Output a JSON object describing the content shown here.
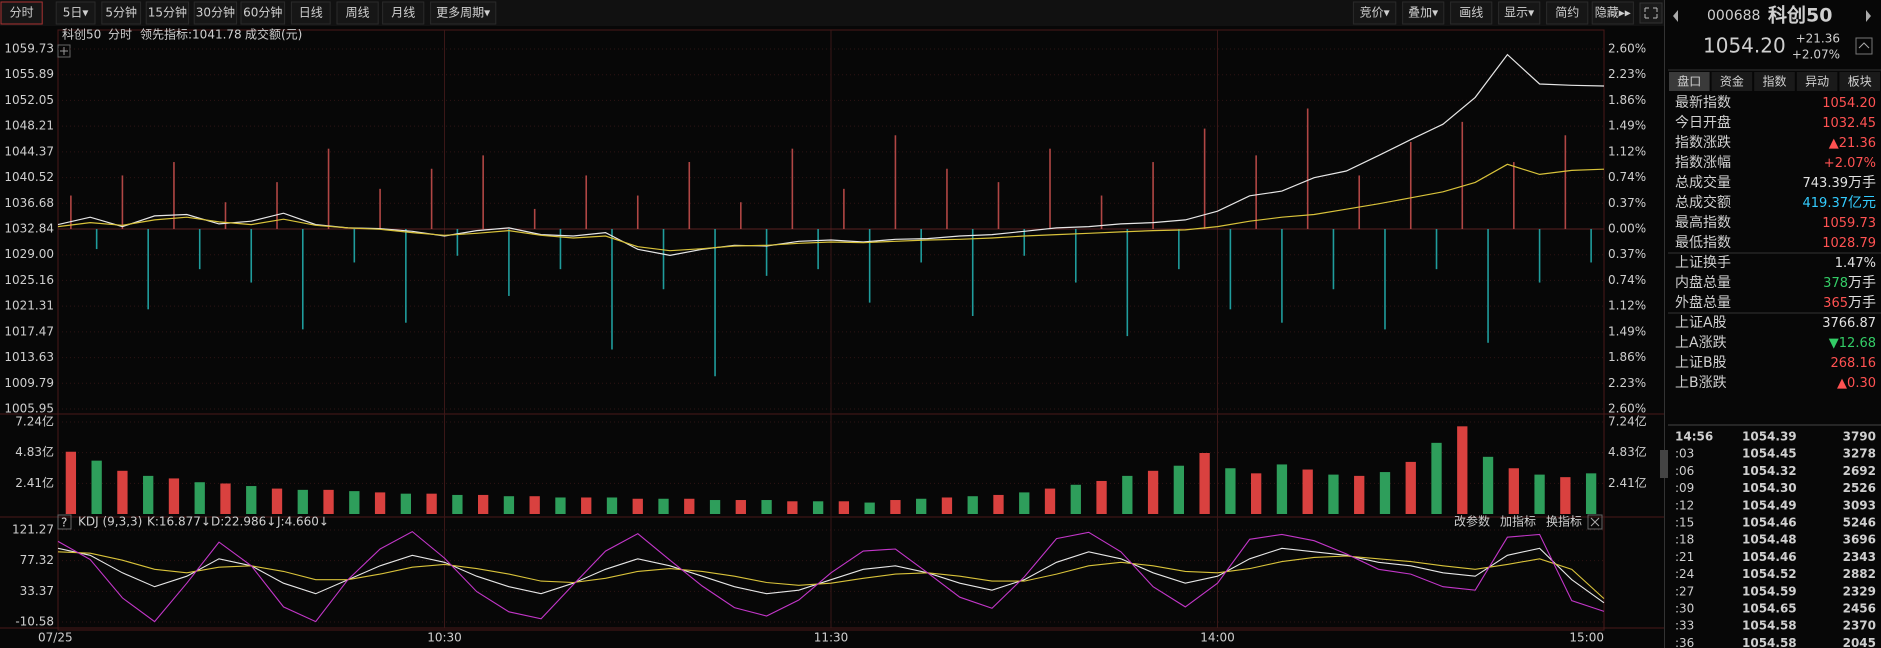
{
  "toolbar": {
    "periods": [
      "分时",
      "5日▾",
      "5分钟",
      "15分钟",
      "30分钟",
      "60分钟",
      "日线",
      "周线",
      "月线",
      "更多周期▾"
    ],
    "tools": [
      "竞价▾",
      "叠加▾",
      "画线",
      "显示▾",
      "简约",
      "隐藏▸▸"
    ]
  },
  "quote": {
    "code": "000688",
    "name": "科创50",
    "price": "1054.20",
    "change": "+21.36",
    "change_pct": "+2.07%"
  },
  "tabs": [
    "盘口",
    "资金",
    "指数",
    "异动",
    "板块"
  ],
  "stats": [
    {
      "label": "最新指数",
      "value": "1054.20",
      "color": "#ff5252"
    },
    {
      "label": "今日开盘",
      "value": "1032.45",
      "color": "#ff5252"
    },
    {
      "label": "指数涨跌",
      "value": "▲21.36",
      "color": "#ff5252"
    },
    {
      "label": "指数涨幅",
      "value": "+2.07%",
      "color": "#ff5252"
    },
    {
      "label": "总成交量",
      "value": "743.39",
      "unit": "万手",
      "color": "#e0e0e0"
    },
    {
      "label": "总成交额",
      "value": "419.37",
      "unit": "亿元",
      "color": "#33ccff"
    },
    {
      "label": "最高指数",
      "value": "1059.73",
      "color": "#ff5252"
    },
    {
      "label": "最低指数",
      "value": "1028.79",
      "color": "#ff5252"
    },
    {
      "label": "上证换手",
      "value": "1.47%",
      "color": "#e0e0e0"
    },
    {
      "label": "内盘总量",
      "value": "378",
      "unit": "万手",
      "color": "#33cc66"
    },
    {
      "label": "外盘总量",
      "value": "365",
      "unit": "万手",
      "color": "#ff5252"
    },
    {
      "label": "上证A股",
      "value": "3766.87",
      "color": "#e0e0e0"
    },
    {
      "label": "上A涨跌",
      "value": "▼12.68",
      "color": "#33cc66"
    },
    {
      "label": "上证B股",
      "value": "268.16",
      "color": "#ff5252"
    },
    {
      "label": "上B涨跌",
      "value": "▲0.30",
      "color": "#ff5252"
    }
  ],
  "trades": [
    [
      "14:56",
      "1054.39",
      "3790"
    ],
    [
      ":03",
      "1054.45",
      "3278"
    ],
    [
      ":06",
      "1054.32",
      "2692"
    ],
    [
      ":09",
      "1054.30",
      "2526"
    ],
    [
      ":12",
      "1054.49",
      "3093"
    ],
    [
      ":15",
      "1054.46",
      "5246"
    ],
    [
      ":18",
      "1054.48",
      "3696"
    ],
    [
      ":21",
      "1054.46",
      "2343"
    ],
    [
      ":24",
      "1054.52",
      "2882"
    ],
    [
      ":27",
      "1054.59",
      "2329"
    ],
    [
      ":30",
      "1054.65",
      "2456"
    ],
    [
      ":33",
      "1054.58",
      "2370"
    ],
    [
      ":36",
      "1054.58",
      "2045"
    ]
  ],
  "chart": {
    "name": "科创50",
    "period": "分时",
    "indicator": "领先指标:1041.78",
    "amount_label": "成交额(元)",
    "xlim": [
      0,
      240
    ],
    "xticks": [
      {
        "value": 0,
        "label": "07/25"
      },
      {
        "value": 60,
        "label": "10:30"
      },
      {
        "value": 120,
        "label": "11:30"
      },
      {
        "value": 180,
        "label": "14:00"
      },
      {
        "value": 240,
        "label": "15:00"
      }
    ],
    "price": {
      "ylim": [
        1005.95,
        1059.73
      ],
      "yticks": [
        1059.73,
        1055.89,
        1052.05,
        1048.21,
        1044.37,
        1040.52,
        1036.68,
        1032.84,
        {
          "value": 1029,
          "label": "1029.00"
        },
        1025.16,
        1021.31,
        1017.47,
        1013.63,
        1009.79,
        1005.95
      ],
      "pct_labels": [
        "2.60%",
        "2.23%",
        "1.86%",
        "1.49%",
        "1.12%",
        "0.74%",
        "0.37%",
        "0.00%",
        "0.37%",
        "0.74%",
        "1.12%",
        "1.49%",
        "1.86%",
        "2.23%",
        "2.60%"
      ],
      "x": [
        0,
        5,
        10,
        15,
        20,
        25,
        30,
        35,
        40,
        45,
        50,
        55,
        60,
        65,
        70,
        75,
        80,
        85,
        90,
        95,
        100,
        105,
        110,
        115,
        120,
        125,
        130,
        135,
        140,
        145,
        150,
        155,
        160,
        165,
        170,
        175,
        180,
        185,
        190,
        195,
        200,
        205,
        210,
        215,
        220,
        225,
        230,
        235,
        240
      ],
      "series": [
        {
          "color": "#e6e6e6",
          "values": [
            1033.5,
            1034.6,
            1033.2,
            1034.8,
            1035.0,
            1033.6,
            1034.0,
            1035.2,
            1033.5,
            1033.0,
            1032.9,
            1032.5,
            1031.8,
            1032.6,
            1033.0,
            1032.0,
            1031.8,
            1032.3,
            1029.8,
            1028.9,
            1029.8,
            1030.4,
            1030.3,
            1031.0,
            1031.2,
            1030.9,
            1031.3,
            1031.4,
            1031.8,
            1032.0,
            1032.5,
            1033.0,
            1033.2,
            1033.6,
            1033.8,
            1034.2,
            1035.5,
            1037.8,
            1038.5,
            1040.5,
            1041.5,
            1043.8,
            1046.2,
            1048.5,
            1052.5,
            1058.9,
            1054.5,
            1054.3,
            1054.2
          ]
        },
        {
          "color": "#d8c23a",
          "values": [
            1033.2,
            1033.8,
            1033.4,
            1034.2,
            1034.6,
            1033.9,
            1033.5,
            1034.3,
            1033.4,
            1033.0,
            1032.8,
            1032.3,
            1031.9,
            1032.2,
            1032.6,
            1031.9,
            1031.5,
            1031.8,
            1030.2,
            1029.6,
            1029.9,
            1030.3,
            1030.4,
            1030.7,
            1030.9,
            1030.8,
            1031.0,
            1031.2,
            1031.3,
            1031.5,
            1031.8,
            1032.0,
            1032.2,
            1032.4,
            1032.6,
            1032.7,
            1033.2,
            1034.0,
            1034.6,
            1035.0,
            1035.8,
            1036.6,
            1037.5,
            1038.4,
            1039.8,
            1042.5,
            1041.0,
            1041.6,
            1041.78
          ]
        }
      ],
      "bars": {
        "up_color": "#b04644",
        "down_color": "#1f9c9c",
        "x": [
          2,
          6,
          10,
          14,
          18,
          22,
          26,
          30,
          34,
          38,
          42,
          46,
          50,
          54,
          58,
          62,
          66,
          70,
          74,
          78,
          82,
          86,
          90,
          94,
          98,
          102,
          106,
          110,
          114,
          118,
          122,
          126,
          130,
          134,
          138,
          142,
          146,
          150,
          154,
          158,
          162,
          166,
          170,
          174,
          178,
          182,
          186,
          190,
          194,
          198,
          202,
          206,
          210,
          214,
          218,
          222,
          226,
          230,
          234,
          238
        ],
        "values": [
          5,
          -3,
          8,
          -12,
          10,
          -6,
          4,
          -8,
          7,
          -15,
          12,
          -5,
          6,
          -14,
          9,
          -4,
          11,
          -10,
          3,
          -6,
          8,
          -18,
          5,
          -9,
          10,
          -22,
          4,
          -7,
          12,
          -6,
          6,
          -11,
          14,
          -5,
          9,
          -13,
          7,
          -4,
          12,
          -8,
          5,
          -16,
          10,
          -6,
          15,
          -12,
          11,
          -14,
          18,
          -9,
          8,
          -15,
          13,
          -6,
          16,
          -17,
          10,
          -8,
          14,
          -5
        ]
      }
    },
    "volume": {
      "ylim": [
        0,
        7.24
      ],
      "yticks": [
        {
          "value": 7.24,
          "label": "7.24亿"
        },
        {
          "value": 4.83,
          "label": "4.83亿"
        },
        {
          "value": 2.41,
          "label": "2.41亿"
        }
      ],
      "up_color": "#d9413f",
      "down_color": "#2e9e5b",
      "values": [
        4.9,
        4.2,
        3.4,
        3.0,
        2.8,
        2.5,
        2.4,
        2.2,
        2.0,
        1.9,
        1.9,
        1.8,
        1.7,
        1.6,
        1.6,
        1.5,
        1.5,
        1.4,
        1.4,
        1.3,
        1.3,
        1.3,
        1.2,
        1.2,
        1.2,
        1.1,
        1.1,
        1.1,
        1.0,
        1.0,
        1.0,
        0.9,
        1.1,
        1.2,
        1.3,
        1.4,
        1.5,
        1.7,
        2.0,
        2.3,
        2.6,
        3.0,
        3.4,
        3.8,
        4.8,
        3.6,
        3.2,
        3.9,
        3.5,
        3.1,
        3.0,
        3.3,
        4.1,
        5.6,
        6.9,
        4.5,
        3.6,
        3.1,
        2.9,
        3.2
      ]
    },
    "kdj": {
      "title": "KDJ (9,3,3)",
      "readout": [
        "K:16.877↓",
        "D:22.986↓",
        "J:4.660↓"
      ],
      "buttons": [
        "改参数",
        "加指标",
        "换指标"
      ],
      "ylim": [
        -10.58,
        121.27
      ],
      "yticks": [
        121.27,
        77.32,
        33.37,
        -10.58
      ],
      "series": [
        {
          "color": "#e6e6e6",
          "values": [
            95,
            85,
            60,
            40,
            55,
            80,
            70,
            45,
            30,
            50,
            70,
            85,
            75,
            55,
            40,
            30,
            45,
            65,
            80,
            70,
            55,
            40,
            30,
            35,
            50,
            65,
            70,
            60,
            45,
            35,
            50,
            75,
            90,
            80,
            60,
            45,
            55,
            80,
            95,
            90,
            85,
            75,
            70,
            60,
            55,
            85,
            95,
            50,
            16.877
          ]
        },
        {
          "color": "#d8c23a",
          "values": [
            90,
            88,
            78,
            65,
            60,
            68,
            70,
            62,
            50,
            50,
            58,
            68,
            72,
            66,
            58,
            48,
            46,
            52,
            62,
            66,
            62,
            55,
            46,
            42,
            45,
            52,
            58,
            60,
            55,
            48,
            48,
            58,
            70,
            75,
            70,
            62,
            60,
            66,
            76,
            82,
            84,
            80,
            76,
            70,
            65,
            72,
            80,
            65,
            22.986
          ]
        },
        {
          "color": "#c236c8",
          "values": [
            105,
            79,
            24,
            -10,
            45,
            104,
            70,
            11,
            -10,
            50,
            94,
            119,
            81,
            33,
            4,
            -6,
            43,
            91,
            116,
            78,
            41,
            10,
            -2,
            21,
            60,
            91,
            94,
            60,
            25,
            9,
            54,
            109,
            118,
            90,
            40,
            11,
            45,
            108,
            115,
            106,
            87,
            65,
            58,
            40,
            35,
            111,
            115,
            20,
            4.66
          ]
        }
      ]
    }
  }
}
